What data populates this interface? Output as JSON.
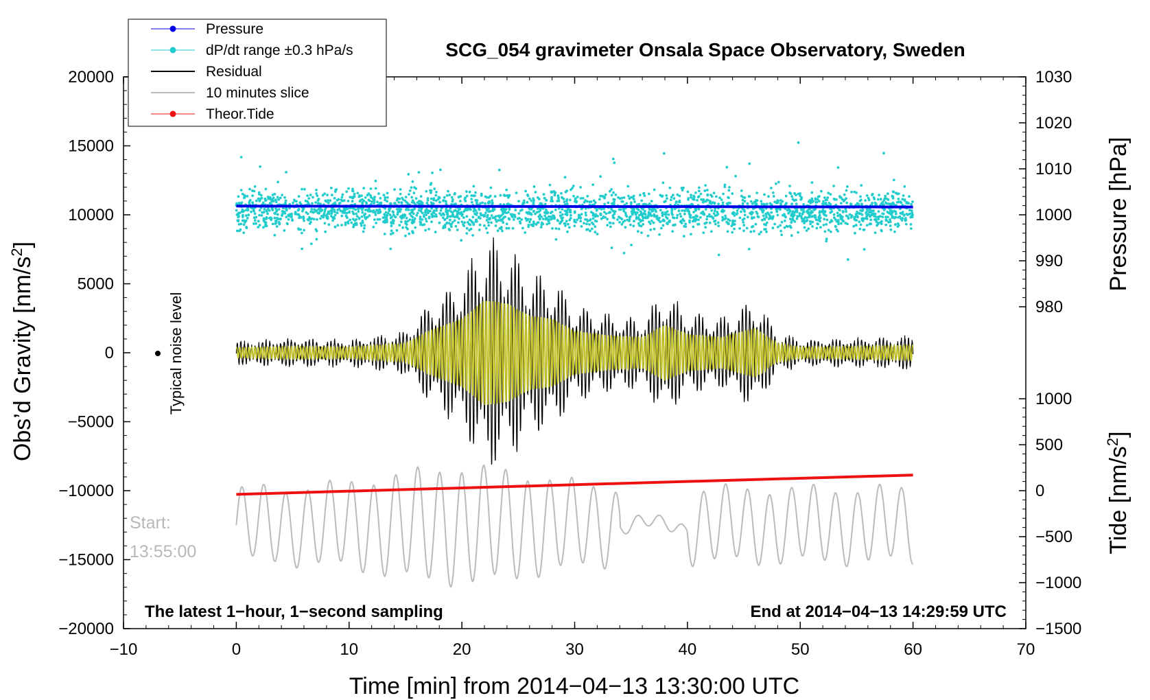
{
  "chart_data": {
    "type": "line",
    "title": "SCG_054 gravimeter Onsala Space Observatory, Sweden",
    "xlabel": "Time [min] from 2014−04−13 13:30:00 UTC",
    "ylabel_left": "Obs’d Gravity [nm/s",
    "ylabel_left_sup": "2",
    "ylabel_left_tail": "]",
    "ylabel_right_top": "Pressure [hPa]",
    "ylabel_right_bottom": "Tide [nm/s",
    "ylabel_right_bottom_sup": "2",
    "ylabel_right_bottom_tail": "]",
    "xlim": [
      -10,
      70
    ],
    "ylim_left": [
      -20000,
      20000
    ],
    "pressure_axis_range": [
      980,
      1030
    ],
    "tide_axis_range": [
      -1500,
      1000
    ],
    "x_ticks": [
      -10,
      0,
      10,
      20,
      30,
      40,
      50,
      60,
      70
    ],
    "x_tick_labels": [
      "−10",
      "0",
      "10",
      "20",
      "30",
      "40",
      "50",
      "60",
      "70"
    ],
    "y_left_ticks": [
      20000,
      15000,
      10000,
      5000,
      0,
      -5000,
      -10000,
      -15000,
      -20000
    ],
    "y_left_tick_labels": [
      "20000",
      "15000",
      "10000",
      "5000",
      "0",
      "−5000",
      "−10000",
      "−15000",
      "−20000"
    ],
    "pressure_ticks": [
      1030,
      1020,
      1010,
      1000,
      990,
      980
    ],
    "pressure_tick_labels": [
      "1030",
      "1020",
      "1010",
      "1000",
      "990",
      "980"
    ],
    "tide_ticks": [
      1000,
      500,
      0,
      -500,
      -1000,
      -1500
    ],
    "tide_tick_labels": [
      "1000",
      "500",
      "0",
      "−500",
      "−1000",
      "−1500"
    ],
    "legend": [
      {
        "label": "Pressure",
        "color": "#0000e6",
        "marker": true
      },
      {
        "label": "dP/dt range ±0.3 hPa/s",
        "color": "#22cccc",
        "marker": true
      },
      {
        "label": "Residual",
        "color": "#000000",
        "marker": false
      },
      {
        "label": "10 minutes slice",
        "color": "#bbbbbb",
        "marker": false
      },
      {
        "label": "Theor.Tide",
        "color": "#ee1111",
        "marker": true
      }
    ],
    "annotations": {
      "noise_label": "Typical noise level",
      "start_label": "Start:",
      "start_time": "13:55:00",
      "bottom_left": "The latest 1−hour, 1−second sampling",
      "bottom_right": "End at 2014−04−13 14:29:59 UTC"
    },
    "series": [
      {
        "name": "Pressure",
        "unit": "hPa",
        "x": [
          0,
          60
        ],
        "values": [
          1001.9,
          1001.7
        ]
      },
      {
        "name": "Theor.Tide",
        "unit": "nm/s2",
        "x": [
          0,
          60
        ],
        "values": [
          -40,
          170
        ]
      },
      {
        "name": "Residual",
        "unit": "nm/s2",
        "x_range": [
          0,
          60
        ],
        "envelope_x": [
          0,
          5,
          10,
          15,
          17,
          20,
          22,
          24,
          26,
          28,
          30,
          33,
          36,
          38,
          40,
          43,
          46,
          48,
          50,
          55,
          60
        ],
        "envelope_amp": [
          800,
          1000,
          900,
          1500,
          3500,
          5500,
          8500,
          8000,
          6000,
          5500,
          3500,
          2800,
          2500,
          4500,
          3000,
          2500,
          4000,
          1500,
          900,
          1000,
          1200
        ]
      },
      {
        "name": "10 minutes slice",
        "unit": "nm/s2",
        "x_range": [
          0,
          60
        ],
        "start": "13:55:00"
      },
      {
        "name": "dP/dt range ±0.3 hPa/s",
        "unit": "nm/s2",
        "x_range": [
          0,
          60
        ],
        "center": 10300,
        "spread": 1200
      }
    ],
    "grid": false,
    "legend_position": "top-left"
  }
}
